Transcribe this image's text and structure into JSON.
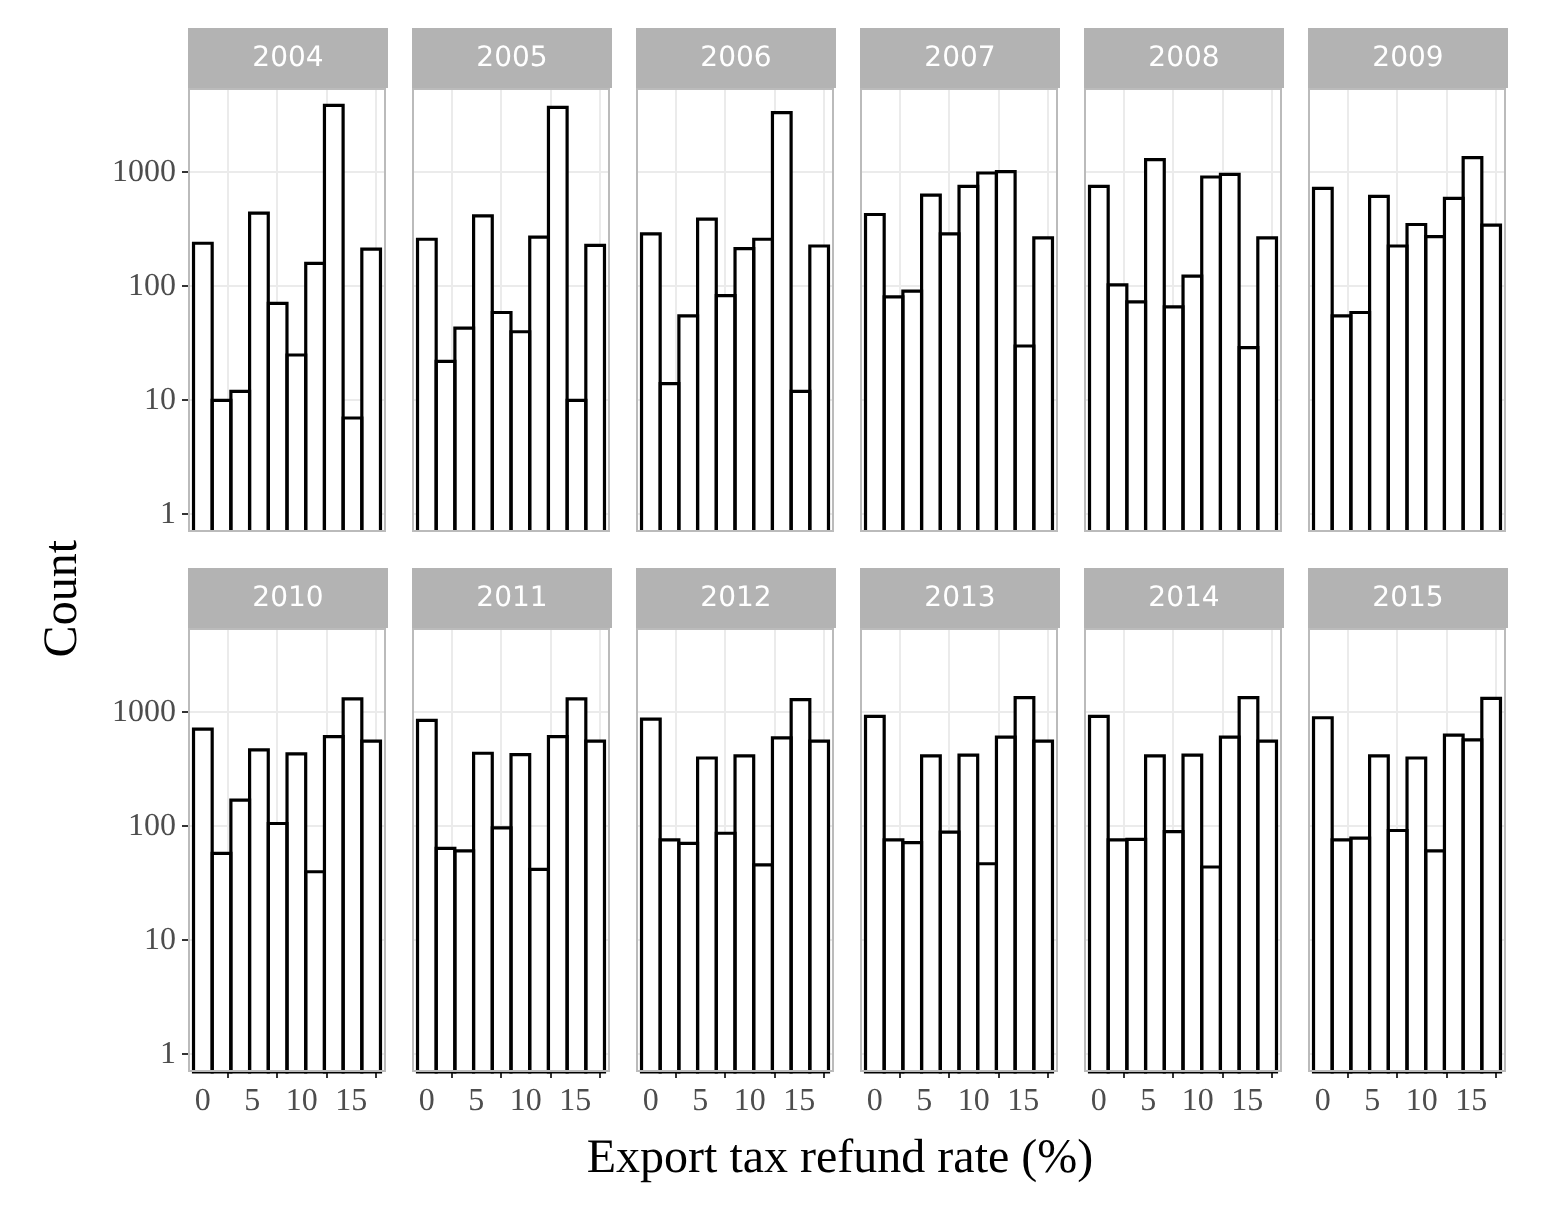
{
  "chart_data": [
    {
      "type": "histogram",
      "title": "2004",
      "ylabel": "Count",
      "xlabel": "Export tax refund rate (%)",
      "bins": [
        -0.94,
        0.94,
        2.83,
        4.72,
        6.61,
        8.5,
        10.39,
        12.28,
        14.17,
        16.06,
        17.94
      ],
      "values": [
        239,
        10,
        12,
        439,
        71,
        25,
        159,
        3870,
        7,
        212
      ],
      "color": "#ffffff",
      "xlim": [
        -1.5,
        18.5
      ],
      "xticks": [
        0,
        5,
        10,
        15
      ],
      "ylim": [
        0.7,
        5500
      ],
      "yticks": [
        1,
        10,
        100,
        1000
      ],
      "log": true,
      "grid": true,
      "tick_labels": "y"
    },
    {
      "type": "histogram",
      "title": "2005",
      "bins": [
        -0.94,
        0.94,
        2.83,
        4.72,
        6.61,
        8.5,
        10.39,
        12.28,
        14.17,
        16.06,
        17.94
      ],
      "values": [
        259,
        22,
        43,
        416,
        59,
        40,
        270,
        3720,
        10,
        229
      ],
      "color": "#ffffff",
      "xlim": [
        -1.5,
        18.5
      ],
      "xticks": [
        0,
        5,
        10,
        15
      ],
      "ylim": [
        0.7,
        5500
      ],
      "yticks": [
        1,
        10,
        100,
        1000
      ],
      "log": true,
      "grid": true,
      "tick_labels": false
    },
    {
      "type": "histogram",
      "title": "2006",
      "bins": [
        -0.94,
        0.94,
        2.83,
        4.72,
        6.61,
        8.5,
        10.39,
        12.28,
        14.17,
        16.06,
        17.94
      ],
      "values": [
        289,
        14,
        55,
        389,
        83,
        214,
        259,
        3340,
        12,
        226
      ],
      "color": "#ffffff",
      "xlim": [
        -1.5,
        18.5
      ],
      "xticks": [
        0,
        5,
        10,
        15
      ],
      "ylim": [
        0.7,
        5500
      ],
      "yticks": [
        1,
        10,
        100,
        1000
      ],
      "log": true,
      "grid": true,
      "tick_labels": false
    },
    {
      "type": "histogram",
      "title": "2007",
      "bins": [
        -0.94,
        0.94,
        2.83,
        4.72,
        6.61,
        8.5,
        10.39,
        12.28,
        14.17,
        16.06,
        17.94
      ],
      "values": [
        427,
        81,
        91,
        632,
        289,
        754,
        988,
        1015,
        30,
        266
      ],
      "color": "#ffffff",
      "xlim": [
        -1.5,
        18.5
      ],
      "xticks": [
        0,
        5,
        10,
        15
      ],
      "ylim": [
        0.7,
        5500
      ],
      "yticks": [
        1,
        10,
        100,
        1000
      ],
      "log": true,
      "grid": true,
      "tick_labels": false
    },
    {
      "type": "histogram",
      "title": "2008",
      "bins": [
        -0.94,
        0.94,
        2.83,
        4.72,
        6.61,
        8.5,
        10.39,
        12.28,
        14.17,
        16.06,
        17.94
      ],
      "values": [
        754,
        103,
        73,
        1295,
        66,
        123,
        911,
        962,
        29,
        266
      ],
      "color": "#ffffff",
      "xlim": [
        -1.5,
        18.5
      ],
      "xticks": [
        0,
        5,
        10,
        15
      ],
      "ylim": [
        0.7,
        5500
      ],
      "yticks": [
        1,
        10,
        100,
        1000
      ],
      "log": true,
      "grid": true,
      "tick_labels": false
    },
    {
      "type": "histogram",
      "title": "2009",
      "bins": [
        -0.94,
        0.94,
        2.83,
        4.72,
        6.61,
        8.5,
        10.39,
        12.28,
        14.17,
        16.06,
        17.94
      ],
      "values": [
        724,
        55,
        59,
        615,
        226,
        349,
        273,
        591,
        1348,
        344
      ],
      "color": "#ffffff",
      "xlim": [
        -1.5,
        18.5
      ],
      "xticks": [
        0,
        5,
        10,
        15
      ],
      "ylim": [
        0.7,
        5500
      ],
      "yticks": [
        1,
        10,
        100,
        1000
      ],
      "log": true,
      "grid": true,
      "tick_labels": false
    },
    {
      "type": "histogram",
      "title": "2010",
      "bins": [
        -0.94,
        0.94,
        2.83,
        4.72,
        6.61,
        8.5,
        10.39,
        12.28,
        14.17,
        16.06,
        17.94
      ],
      "values": [
        713,
        58,
        170,
        469,
        106,
        432,
        40,
        614,
        1312,
        559
      ],
      "color": "#ffffff",
      "xlim": [
        -1.5,
        18.5
      ],
      "xticks": [
        0,
        5,
        10,
        15
      ],
      "ylim": [
        0.7,
        5500
      ],
      "yticks": [
        1,
        10,
        100,
        1000
      ],
      "log": true,
      "grid": true
    },
    {
      "type": "histogram",
      "title": "2011",
      "bins": [
        -0.94,
        0.94,
        2.83,
        4.72,
        6.61,
        8.5,
        10.39,
        12.28,
        14.17,
        16.06,
        17.94
      ],
      "values": [
        850,
        64,
        61,
        438,
        97,
        426,
        42,
        614,
        1312,
        559
      ],
      "color": "#ffffff",
      "xlim": [
        -1.5,
        18.5
      ],
      "xticks": [
        0,
        5,
        10,
        15
      ],
      "ylim": [
        0.7,
        5500
      ],
      "yticks": [
        1,
        10,
        100,
        1000
      ],
      "log": true,
      "grid": true,
      "tick_labels": "x"
    },
    {
      "type": "histogram",
      "title": "2012",
      "bins": [
        -0.94,
        0.94,
        2.83,
        4.72,
        6.61,
        8.5,
        10.39,
        12.28,
        14.17,
        16.06,
        17.94
      ],
      "values": [
        874,
        76,
        71,
        398,
        87,
        415,
        46,
        598,
        1294,
        559
      ],
      "color": "#ffffff",
      "xlim": [
        -1.5,
        18.5
      ],
      "xticks": [
        0,
        5,
        10,
        15
      ],
      "ylim": [
        0.7,
        5500
      ],
      "yticks": [
        1,
        10,
        100,
        1000
      ],
      "log": true,
      "grid": true,
      "tick_labels": "x"
    },
    {
      "type": "histogram",
      "title": "2013",
      "bins": [
        -0.94,
        0.94,
        2.83,
        4.72,
        6.61,
        8.5,
        10.39,
        12.28,
        14.17,
        16.06,
        17.94
      ],
      "values": [
        922,
        76,
        72,
        415,
        89,
        421,
        47,
        606,
        1347,
        559
      ],
      "color": "#ffffff",
      "xlim": [
        -1.5,
        18.5
      ],
      "xticks": [
        0,
        5,
        10,
        15
      ],
      "ylim": [
        0.7,
        5500
      ],
      "yticks": [
        1,
        10,
        100,
        1000
      ],
      "log": true,
      "grid": true,
      "tick_labels": "x"
    },
    {
      "type": "histogram",
      "title": "2014",
      "bins": [
        -0.94,
        0.94,
        2.83,
        4.72,
        6.61,
        8.5,
        10.39,
        12.28,
        14.17,
        16.06,
        17.94
      ],
      "values": [
        922,
        76,
        77,
        415,
        90,
        421,
        44,
        606,
        1347,
        559
      ],
      "color": "#ffffff",
      "xlim": [
        -1.5,
        18.5
      ],
      "xticks": [
        0,
        5,
        10,
        15
      ],
      "ylim": [
        0.7,
        5500
      ],
      "yticks": [
        1,
        10,
        100,
        1000
      ],
      "log": true,
      "grid": true,
      "tick_labels": "x"
    },
    {
      "type": "histogram",
      "title": "2015",
      "bins": [
        -0.94,
        0.94,
        2.83,
        4.72,
        6.61,
        8.5,
        10.39,
        12.28,
        14.17,
        16.06,
        17.94
      ],
      "values": [
        897,
        76,
        79,
        415,
        92,
        398,
        61,
        631,
        574,
        1329
      ],
      "color": "#ffffff",
      "xlim": [
        -1.5,
        18.5
      ],
      "xticks": [
        0,
        5,
        10,
        15
      ],
      "ylim": [
        0.7,
        5500
      ],
      "yticks": [
        1,
        10,
        100,
        1000
      ],
      "log": true,
      "grid": true,
      "tick_labels": "x"
    }
  ]
}
